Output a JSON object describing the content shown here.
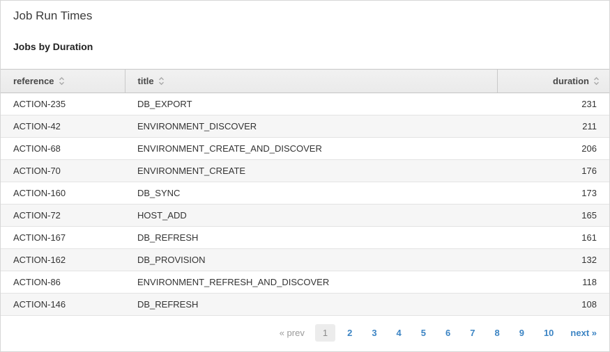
{
  "page": {
    "title": "Job Run Times",
    "subtitle": "Jobs by Duration"
  },
  "table": {
    "columns": [
      {
        "key": "reference",
        "label": "reference",
        "sortable": true
      },
      {
        "key": "title",
        "label": "title",
        "sortable": true
      },
      {
        "key": "duration",
        "label": "duration",
        "sortable": true
      }
    ],
    "rows": [
      {
        "reference": "ACTION-235",
        "title": "DB_EXPORT",
        "duration": "231"
      },
      {
        "reference": "ACTION-42",
        "title": "ENVIRONMENT_DISCOVER",
        "duration": "211"
      },
      {
        "reference": "ACTION-68",
        "title": "ENVIRONMENT_CREATE_AND_DISCOVER",
        "duration": "206"
      },
      {
        "reference": "ACTION-70",
        "title": "ENVIRONMENT_CREATE",
        "duration": "176"
      },
      {
        "reference": "ACTION-160",
        "title": "DB_SYNC",
        "duration": "173"
      },
      {
        "reference": "ACTION-72",
        "title": "HOST_ADD",
        "duration": "165"
      },
      {
        "reference": "ACTION-167",
        "title": "DB_REFRESH",
        "duration": "161"
      },
      {
        "reference": "ACTION-162",
        "title": "DB_PROVISION",
        "duration": "132"
      },
      {
        "reference": "ACTION-86",
        "title": "ENVIRONMENT_REFRESH_AND_DISCOVER",
        "duration": "118"
      },
      {
        "reference": "ACTION-146",
        "title": "DB_REFRESH",
        "duration": "108"
      }
    ]
  },
  "pagination": {
    "prev_label": "« prev",
    "next_label": "next »",
    "pages": [
      "1",
      "2",
      "3",
      "4",
      "5",
      "6",
      "7",
      "8",
      "9",
      "10"
    ],
    "current_page": "1"
  },
  "icons": {
    "sort": "sort-chevrons-icon"
  },
  "colors": {
    "link_blue": "#3d85c4",
    "header_bg": "#ededed",
    "row_alt_bg": "#f6f6f6",
    "row_border": "#e3e3e3",
    "header_border": "#c9c9c9",
    "current_page_bg": "#ececec",
    "muted_text": "#9a9a9a",
    "text": "#333333"
  }
}
